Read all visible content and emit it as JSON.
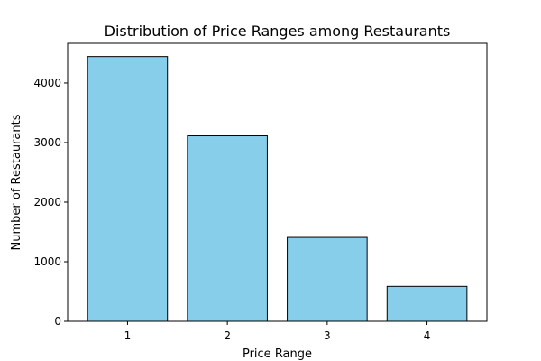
{
  "chart_data": {
    "type": "bar",
    "title": "Distribution of Price Ranges among Restaurants",
    "xlabel": "Price Range",
    "ylabel": "Number of Restaurants",
    "categories": [
      "1",
      "2",
      "3",
      "4"
    ],
    "values": [
      4444,
      3113,
      1408,
      586
    ],
    "ylim": [
      0,
      4666
    ],
    "yticks": [
      0,
      1000,
      2000,
      3000,
      4000
    ],
    "bar_color": "#87ceeb",
    "edge_color": "#000000",
    "grid": false,
    "legend": "none"
  }
}
